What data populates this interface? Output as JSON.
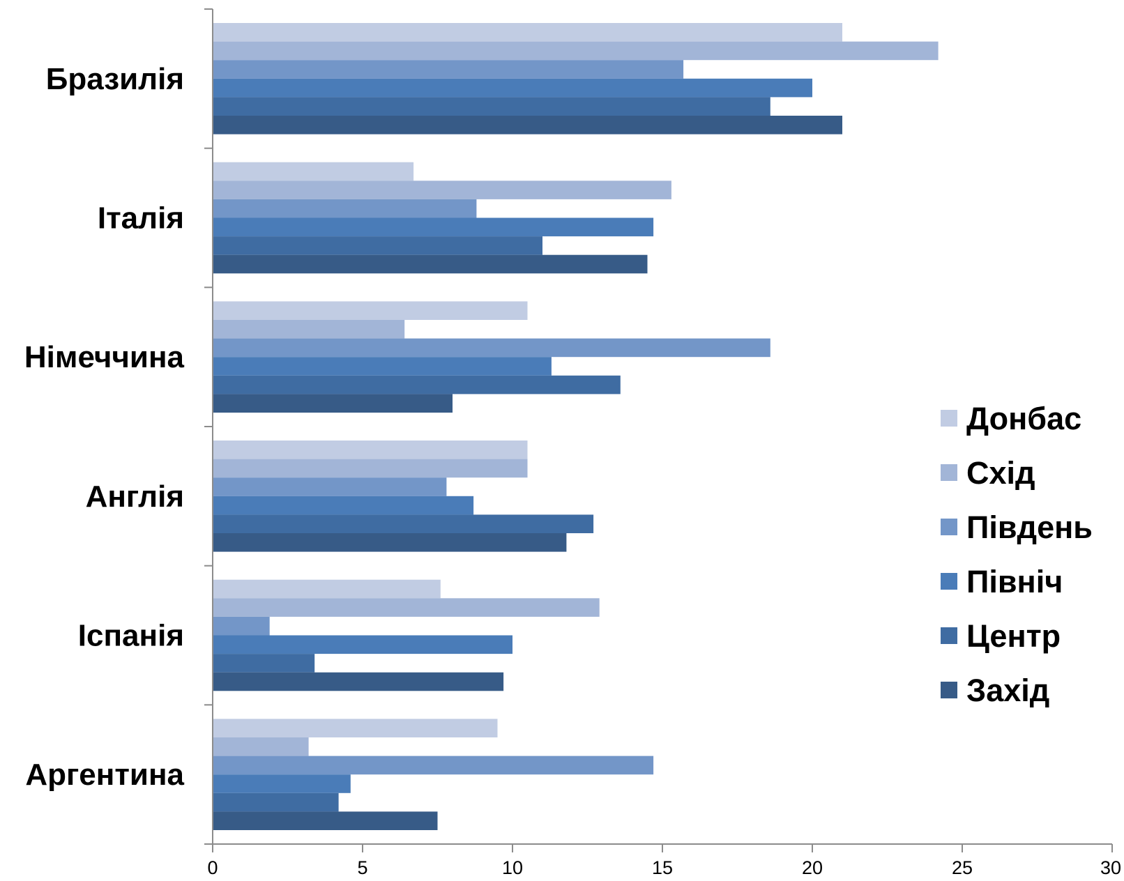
{
  "chart_data": {
    "type": "bar",
    "orientation": "horizontal",
    "categories": [
      "Бразилія",
      "Італія",
      "Німеччина",
      "Англія",
      "Іспанія",
      "Аргентина"
    ],
    "series": [
      {
        "name": "Донбас",
        "color": "#c1cce3",
        "values": [
          21.0,
          6.7,
          10.5,
          10.5,
          7.6,
          9.5
        ]
      },
      {
        "name": "Схід",
        "color": "#a2b5d7",
        "values": [
          24.2,
          15.3,
          6.4,
          10.5,
          12.9,
          3.2
        ]
      },
      {
        "name": "Південь",
        "color": "#7396c8",
        "values": [
          15.7,
          8.8,
          18.6,
          7.8,
          1.9,
          14.7
        ]
      },
      {
        "name": "Північ",
        "color": "#4a7cb8",
        "values": [
          20.0,
          14.7,
          11.3,
          8.7,
          10.0,
          4.6
        ]
      },
      {
        "name": "Центр",
        "color": "#3f6ca2",
        "values": [
          18.6,
          11.0,
          13.6,
          12.7,
          3.4,
          4.2
        ]
      },
      {
        "name": "Захід",
        "color": "#375b87",
        "values": [
          21.0,
          14.5,
          8.0,
          11.8,
          9.7,
          7.5
        ]
      }
    ],
    "x_ticks": [
      "0",
      "5",
      "10",
      "15",
      "20",
      "25",
      "30"
    ],
    "xlim": [
      0,
      30
    ],
    "grid": false,
    "legend_position": "right",
    "title": "",
    "xlabel": "",
    "ylabel": ""
  }
}
